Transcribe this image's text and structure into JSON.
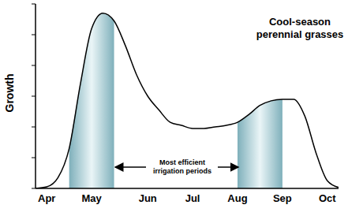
{
  "chart_data": {
    "type": "line",
    "title": "Cool-season perennial grasses",
    "y_label": "Growth",
    "annotation": "Most efficient irrigation periods",
    "categories": [
      null,
      "Apr",
      null,
      null,
      null,
      "May",
      null,
      null,
      null,
      null,
      "Jun",
      null,
      null,
      null,
      "Jul",
      null,
      null,
      null,
      "Aug",
      null,
      null,
      null,
      "Sep",
      null,
      null,
      null,
      "Oct",
      null
    ],
    "values": [
      0,
      0.05,
      0.35,
      1.3,
      3.4,
      5.2,
      5.7,
      5.45,
      4.65,
      3.7,
      3.0,
      2.55,
      2.15,
      2.05,
      1.95,
      1.95,
      2.0,
      2.05,
      2.15,
      2.4,
      2.7,
      2.85,
      2.9,
      2.9,
      2.35,
      1.15,
      0.25,
      0.03
    ],
    "color": "#000000",
    "ylim": [
      0,
      6
    ],
    "yticks": [
      0,
      1,
      2,
      3,
      4,
      5,
      6
    ],
    "tick_labels": "x",
    "shaded_periods": [
      {
        "from": 3,
        "to": 7,
        "color": "#7fb0bb"
      },
      {
        "from": 18,
        "to": 22,
        "color": "#7fb0bb"
      }
    ]
  }
}
